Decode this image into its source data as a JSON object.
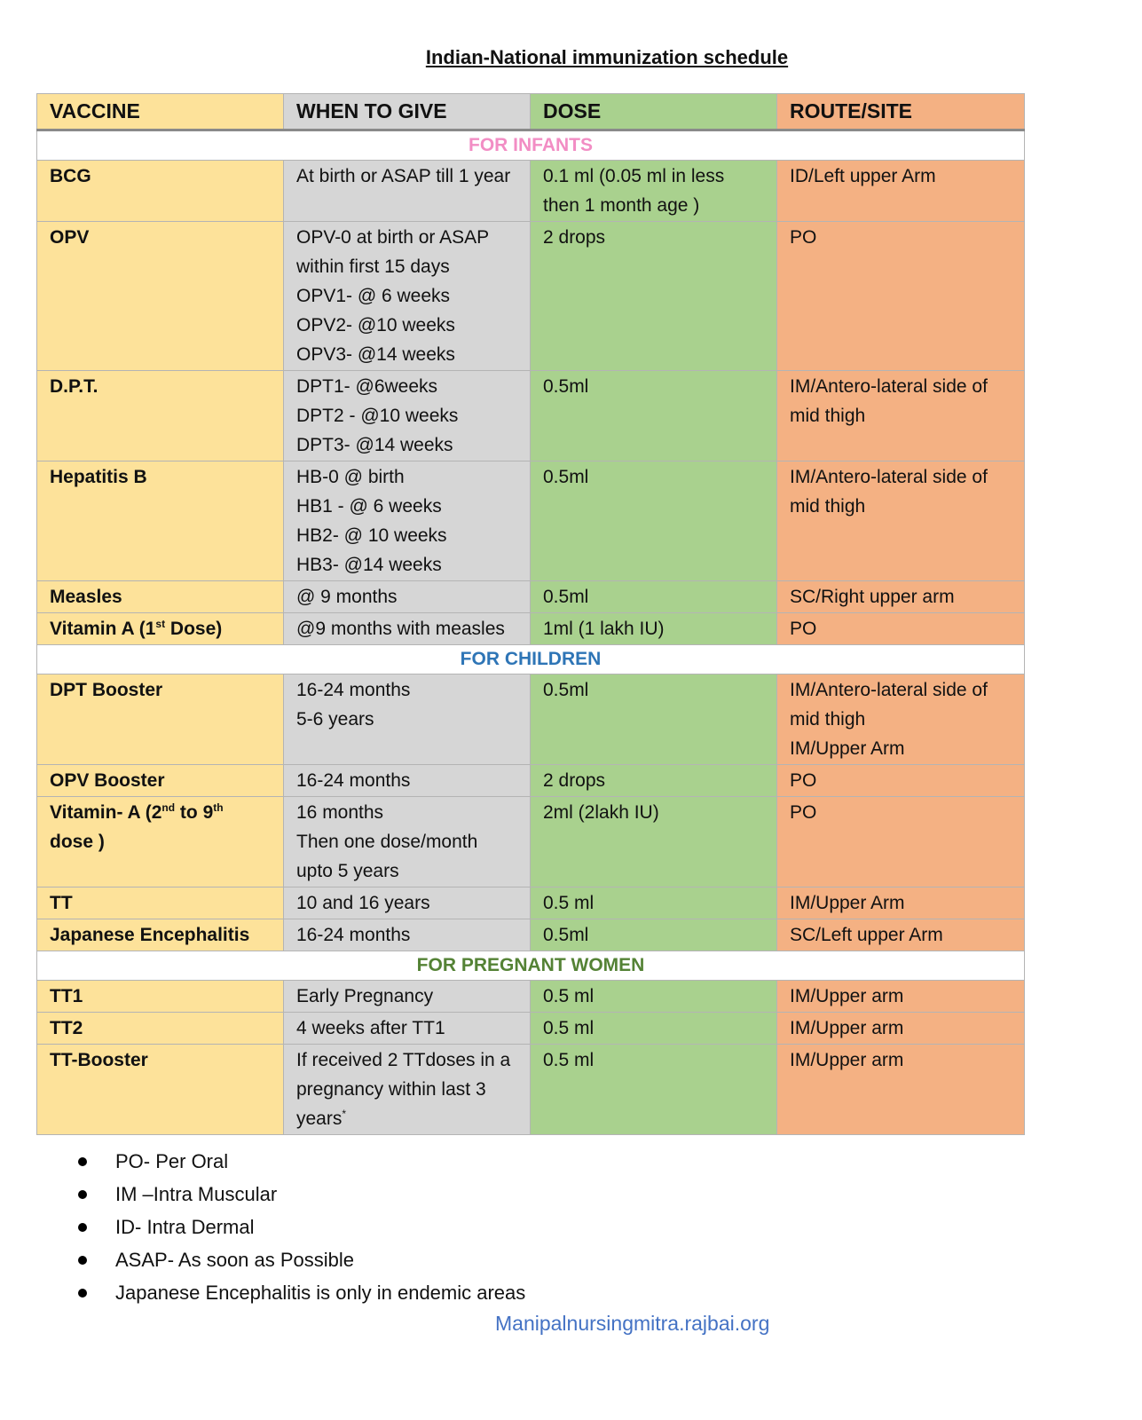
{
  "title": "Indian-National immunization schedule",
  "table": {
    "headers": [
      "VACCINE",
      "WHEN TO GIVE",
      "DOSE",
      "ROUTE/SITE"
    ],
    "sections": [
      {
        "label": "FOR INFANTS",
        "rows": [
          {
            "vaccine": [
              "BCG"
            ],
            "when": [
              "At birth or ASAP till 1 year"
            ],
            "dose": [
              "0.1 ml (0.05 ml in less then 1 month age )"
            ],
            "route": [
              "ID/Left upper Arm"
            ]
          },
          {
            "vaccine": [
              "OPV"
            ],
            "when": [
              "OPV-0 at birth or ASAP within first 15 days",
              "OPV1- @ 6 weeks",
              "OPV2- @10 weeks",
              "OPV3- @14 weeks"
            ],
            "dose": [
              "2 drops"
            ],
            "route": [
              "PO"
            ]
          },
          {
            "vaccine": [
              "D.P.T."
            ],
            "when": [
              "DPT1-  @6weeks",
              "DPT2 - @10 weeks",
              "DPT3- @14 weeks"
            ],
            "dose": [
              "0.5ml"
            ],
            "route": [
              "IM/Antero-lateral side of mid thigh"
            ]
          },
          {
            "vaccine": [
              "Hepatitis B"
            ],
            "when": [
              "HB-0 @ birth",
              "HB1 - @ 6 weeks",
              "HB2- @ 10 weeks",
              "HB3- @14 weeks"
            ],
            "dose": [
              "0.5ml"
            ],
            "route": [
              "IM/Antero-lateral side of mid thigh"
            ]
          },
          {
            "vaccine": [
              "Measles"
            ],
            "when": [
              "@ 9 months"
            ],
            "dose": [
              "0.5ml"
            ],
            "route": [
              "SC/Right upper arm"
            ]
          },
          {
            "vaccine": [
              [
                "Vitamin A (1",
                "st",
                " Dose)"
              ]
            ],
            "when": [
              "@9 months with measles"
            ],
            "dose": [
              "1ml (1 lakh IU)"
            ],
            "route": [
              "PO"
            ]
          }
        ]
      },
      {
        "label": "FOR CHILDREN",
        "rows": [
          {
            "vaccine": [
              "DPT Booster"
            ],
            "when": [
              "16-24 months",
              "5-6 years"
            ],
            "dose": [
              "0.5ml"
            ],
            "route": [
              "IM/Antero-lateral side of mid thigh",
              "IM/Upper Arm"
            ]
          },
          {
            "vaccine": [
              "OPV Booster"
            ],
            "when": [
              "16-24 months"
            ],
            "dose": [
              "2 drops"
            ],
            "route": [
              "PO"
            ]
          },
          {
            "vaccine": [
              [
                "Vitamin- A (2",
                "nd",
                " to 9",
                "th",
                " dose )"
              ]
            ],
            "when": [
              "16 months",
              "Then one dose/month upto 5 years"
            ],
            "dose": [
              "2ml (2lakh IU)"
            ],
            "route": [
              "PO"
            ]
          },
          {
            "vaccine": [
              "TT"
            ],
            "when": [
              "10 and 16 years"
            ],
            "dose": [
              "0.5 ml"
            ],
            "route": [
              "IM/Upper Arm"
            ]
          },
          {
            "vaccine": [
              "Japanese Encephalitis"
            ],
            "when": [
              "16-24 months"
            ],
            "dose": [
              "0.5ml"
            ],
            "route": [
              "SC/Left upper Arm"
            ]
          }
        ]
      },
      {
        "label": "FOR PREGNANT WOMEN",
        "rows": [
          {
            "vaccine": [
              "TT1"
            ],
            "when": [
              "Early Pregnancy"
            ],
            "dose": [
              "0.5 ml"
            ],
            "route": [
              "IM/Upper arm"
            ]
          },
          {
            "vaccine": [
              "TT2"
            ],
            "when": [
              "4 weeks after TT1"
            ],
            "dose": [
              "0.5 ml"
            ],
            "route": [
              "IM/Upper arm"
            ]
          },
          {
            "vaccine": [
              "TT-Booster"
            ],
            "when": [
              [
                "If received 2 TTdoses in a pregnancy within last 3 years",
                "*"
              ]
            ],
            "dose": [
              "0.5 ml"
            ],
            "route": [
              "IM/Upper arm"
            ]
          }
        ]
      }
    ]
  },
  "notes": [
    "PO- Per Oral",
    "IM –Intra Muscular",
    "ID- Intra Dermal",
    "ASAP- As soon as Possible",
    "Japanese Encephalitis is only in endemic areas"
  ],
  "footer": "Manipalnursingmitra.rajbai.org"
}
